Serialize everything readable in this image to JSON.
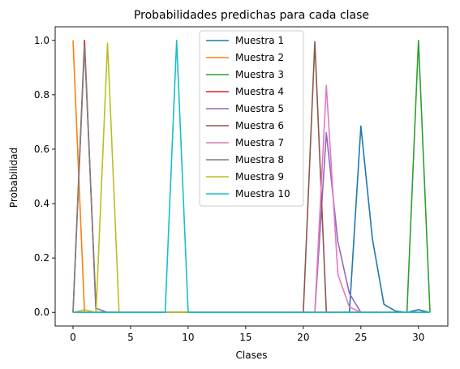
{
  "chart_data": {
    "type": "line",
    "title": "Probabilidades predichas para cada clase",
    "xlabel": "Clases",
    "ylabel": "Probabilidad",
    "xlim": [
      -1.55,
      32.55
    ],
    "ylim": [
      -0.05,
      1.05
    ],
    "xticks": [
      0,
      5,
      10,
      15,
      20,
      25,
      30
    ],
    "yticks": [
      0.0,
      0.2,
      0.4,
      0.6,
      0.8,
      1.0
    ],
    "xtick_labels": [
      "0",
      "5",
      "10",
      "15",
      "20",
      "25",
      "30"
    ],
    "ytick_labels": [
      "0.0",
      "0.2",
      "0.4",
      "0.6",
      "0.8",
      "1.0"
    ],
    "grid": false,
    "legend_position": "top-center",
    "x": [
      0,
      1,
      2,
      3,
      4,
      5,
      6,
      7,
      8,
      9,
      10,
      11,
      12,
      13,
      14,
      15,
      16,
      17,
      18,
      19,
      20,
      21,
      22,
      23,
      24,
      25,
      26,
      27,
      28,
      29,
      30,
      31
    ],
    "series": [
      {
        "name": "Muestra 1",
        "color": "#1f77b4",
        "values": [
          0,
          0,
          0,
          0,
          0,
          0,
          0,
          0,
          0,
          0,
          0,
          0,
          0,
          0,
          0,
          0,
          0,
          0,
          0,
          0,
          0,
          0,
          0,
          0,
          0,
          0.685,
          0.27,
          0.03,
          0.005,
          0,
          0.01,
          0
        ]
      },
      {
        "name": "Muestra 2",
        "color": "#ff7f0e",
        "values": [
          1.0,
          0,
          0,
          0,
          0,
          0,
          0,
          0,
          0,
          0,
          0,
          0,
          0,
          0,
          0,
          0,
          0,
          0,
          0,
          0,
          0,
          0,
          0,
          0,
          0,
          0,
          0,
          0,
          0,
          0,
          0,
          0
        ]
      },
      {
        "name": "Muestra 3",
        "color": "#2ca02c",
        "values": [
          0,
          0,
          0,
          0,
          0,
          0,
          0,
          0,
          0,
          0,
          0,
          0,
          0,
          0,
          0,
          0,
          0,
          0,
          0,
          0,
          0,
          0,
          0,
          0,
          0,
          0,
          0,
          0,
          0,
          0,
          1.0,
          0
        ]
      },
      {
        "name": "Muestra 4",
        "color": "#d62728",
        "values": [
          0,
          1.0,
          0,
          0,
          0,
          0,
          0,
          0,
          0,
          0,
          0,
          0,
          0,
          0,
          0,
          0,
          0,
          0,
          0,
          0,
          0,
          0,
          0,
          0,
          0,
          0,
          0,
          0,
          0,
          0,
          0,
          0
        ]
      },
      {
        "name": "Muestra 5",
        "color": "#9467bd",
        "values": [
          0,
          0,
          0,
          0,
          0,
          0,
          0,
          0,
          0,
          0,
          0,
          0,
          0,
          0,
          0,
          0,
          0,
          0,
          0,
          0,
          0,
          0,
          0.66,
          0.26,
          0.07,
          0,
          0,
          0,
          0,
          0,
          0,
          0
        ]
      },
      {
        "name": "Muestra 6",
        "color": "#8c564b",
        "values": [
          0,
          0,
          0,
          0,
          0,
          0,
          0,
          0,
          0,
          0,
          0,
          0,
          0,
          0,
          0,
          0,
          0,
          0,
          0,
          0,
          0,
          0.995,
          0,
          0,
          0,
          0,
          0,
          0,
          0,
          0,
          0,
          0
        ]
      },
      {
        "name": "Muestra 7",
        "color": "#e377c2",
        "values": [
          0,
          0,
          0,
          0,
          0,
          0,
          0,
          0,
          0,
          0,
          0,
          0,
          0,
          0,
          0,
          0,
          0,
          0,
          0,
          0,
          0,
          0,
          0.835,
          0.14,
          0.02,
          0,
          0,
          0,
          0,
          0,
          0,
          0
        ]
      },
      {
        "name": "Muestra 8",
        "color": "#7f7f7f",
        "values": [
          0,
          0.98,
          0.015,
          0,
          0,
          0,
          0,
          0,
          0,
          0,
          0,
          0,
          0,
          0,
          0,
          0,
          0,
          0,
          0,
          0,
          0,
          0,
          0,
          0,
          0,
          0,
          0,
          0,
          0,
          0,
          0,
          0
        ]
      },
      {
        "name": "Muestra 9",
        "color": "#bcbd22",
        "values": [
          0,
          0.01,
          0,
          0.99,
          0,
          0,
          0,
          0,
          0,
          0,
          0,
          0,
          0,
          0,
          0,
          0,
          0,
          0,
          0,
          0,
          0,
          0,
          0,
          0,
          0,
          0,
          0,
          0,
          0,
          0,
          0,
          0
        ]
      },
      {
        "name": "Muestra 10",
        "color": "#17becf",
        "values": [
          0,
          0,
          0,
          0,
          0,
          0,
          0,
          0,
          0,
          1.0,
          0,
          0,
          0,
          0,
          0,
          0,
          0,
          0,
          0,
          0,
          0,
          0,
          0,
          0,
          0,
          0,
          0,
          0,
          0,
          0,
          0,
          0
        ]
      }
    ]
  }
}
